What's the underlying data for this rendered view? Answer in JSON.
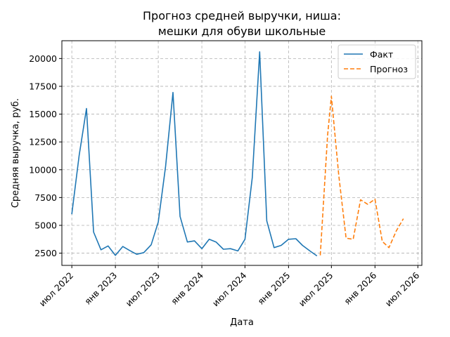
{
  "chart_data": {
    "type": "line",
    "title_line1": "Прогноз средней выручки, ниша:",
    "title_line2": "мешки для обуви школьные",
    "xlabel": "Дата",
    "ylabel": "Средняя выручка, руб.",
    "ylim": [
      1400,
      21600
    ],
    "xlim": [
      "2022-05-20",
      "2026-07-18"
    ],
    "grid": true,
    "legend_position": "top-right",
    "x_ticks": [
      {
        "date": "2022-07-01",
        "label": "июл 2022"
      },
      {
        "date": "2023-01-01",
        "label": "янв 2023"
      },
      {
        "date": "2023-07-01",
        "label": "июл 2023"
      },
      {
        "date": "2024-01-01",
        "label": "янв 2024"
      },
      {
        "date": "2024-07-01",
        "label": "июл 2024"
      },
      {
        "date": "2025-01-01",
        "label": "янв 2025"
      },
      {
        "date": "2025-07-01",
        "label": "июл 2025"
      },
      {
        "date": "2026-01-01",
        "label": "янв 2026"
      },
      {
        "date": "2026-07-01",
        "label": "июл 2026"
      }
    ],
    "y_ticks": [
      {
        "value": 2500,
        "label": "2500"
      },
      {
        "value": 5000,
        "label": "5000"
      },
      {
        "value": 7500,
        "label": "7500"
      },
      {
        "value": 10000,
        "label": "10000"
      },
      {
        "value": 12500,
        "label": "12500"
      },
      {
        "value": 15000,
        "label": "15000"
      },
      {
        "value": 17500,
        "label": "17500"
      },
      {
        "value": 20000,
        "label": "20000"
      }
    ],
    "series": [
      {
        "name": "Факт",
        "color": "#1f77b4",
        "style": "solid",
        "points": [
          [
            "2022-07-01",
            6000
          ],
          [
            "2022-08-01",
            11300
          ],
          [
            "2022-09-01",
            15500
          ],
          [
            "2022-10-01",
            4400
          ],
          [
            "2022-11-01",
            2800
          ],
          [
            "2022-12-01",
            3150
          ],
          [
            "2023-01-01",
            2300
          ],
          [
            "2023-02-01",
            3100
          ],
          [
            "2023-03-01",
            2750
          ],
          [
            "2023-04-01",
            2400
          ],
          [
            "2023-05-01",
            2550
          ],
          [
            "2023-06-01",
            3250
          ],
          [
            "2023-07-01",
            5300
          ],
          [
            "2023-08-01",
            10300
          ],
          [
            "2023-09-01",
            16950
          ],
          [
            "2023-10-01",
            5800
          ],
          [
            "2023-11-01",
            3500
          ],
          [
            "2023-12-01",
            3600
          ],
          [
            "2024-01-01",
            2900
          ],
          [
            "2024-02-01",
            3750
          ],
          [
            "2024-03-01",
            3500
          ],
          [
            "2024-04-01",
            2850
          ],
          [
            "2024-05-01",
            2900
          ],
          [
            "2024-06-01",
            2700
          ],
          [
            "2024-07-01",
            3750
          ],
          [
            "2024-08-01",
            9300
          ],
          [
            "2024-09-01",
            20600
          ],
          [
            "2024-10-01",
            5400
          ],
          [
            "2024-11-01",
            3000
          ],
          [
            "2024-12-01",
            3200
          ],
          [
            "2025-01-01",
            3750
          ],
          [
            "2025-02-01",
            3800
          ],
          [
            "2025-03-01",
            3200
          ],
          [
            "2025-04-01",
            2700
          ],
          [
            "2025-05-01",
            2250
          ]
        ]
      },
      {
        "name": "Прогноз",
        "color": "#ff7f0e",
        "style": "dashed",
        "points": [
          [
            "2025-05-15",
            2300
          ],
          [
            "2025-06-15",
            13100
          ],
          [
            "2025-07-01",
            16600
          ],
          [
            "2025-08-01",
            9500
          ],
          [
            "2025-09-01",
            3850
          ],
          [
            "2025-10-01",
            3750
          ],
          [
            "2025-11-01",
            7300
          ],
          [
            "2025-12-01",
            6900
          ],
          [
            "2026-01-01",
            7350
          ],
          [
            "2026-02-01",
            3550
          ],
          [
            "2026-03-01",
            3000
          ],
          [
            "2026-04-01",
            4500
          ],
          [
            "2026-05-01",
            5600
          ]
        ]
      }
    ]
  }
}
